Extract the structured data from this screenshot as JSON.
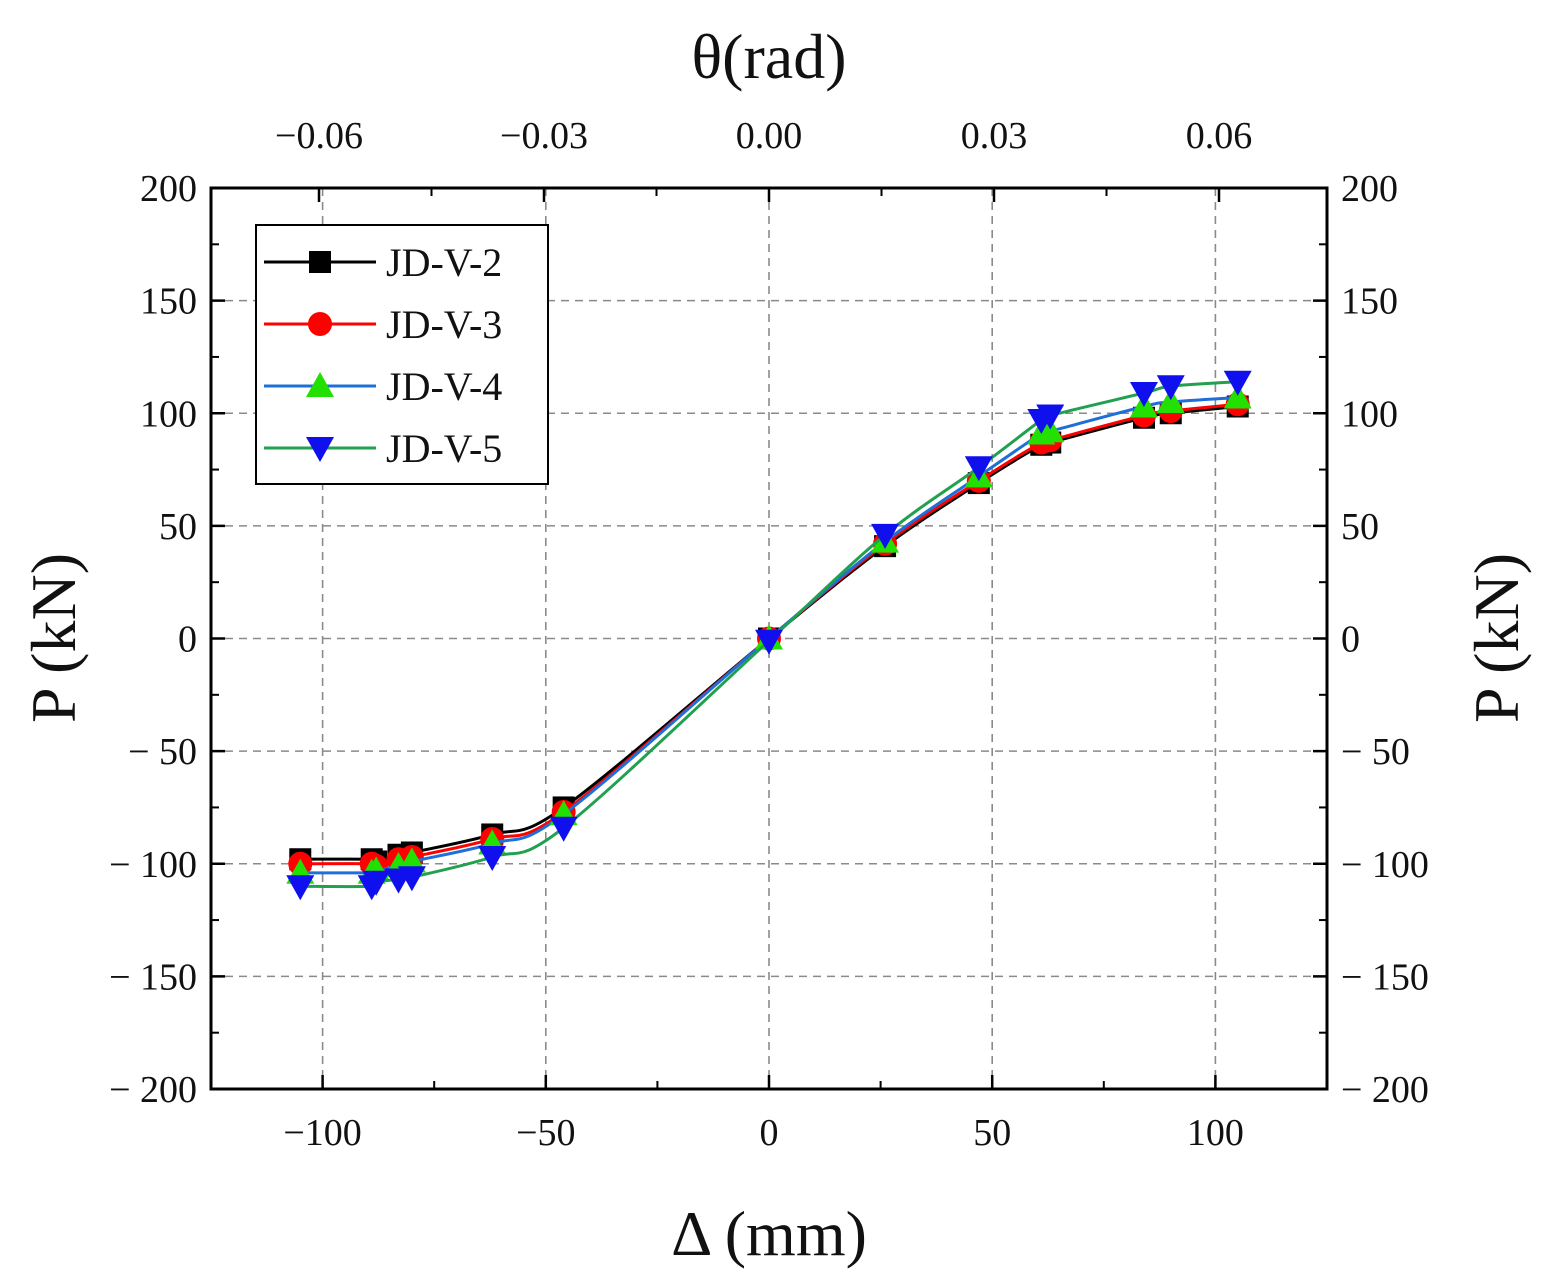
{
  "chart_data": {
    "type": "line",
    "title": "",
    "xlabel": "Δ (mm)",
    "ylabel": "P (kN)",
    "y2label": "P (kN)",
    "top_label": "θ(rad)",
    "xlim": [
      -125,
      125
    ],
    "ylim": [
      -200,
      200
    ],
    "top_xlim": [
      -0.0744,
      0.0744
    ],
    "grid": true,
    "legend_position": "top-left",
    "x_ticks": [
      {
        "v": -100,
        "label": "−100"
      },
      {
        "v": -50,
        "label": "−50"
      },
      {
        "v": 0,
        "label": "0"
      },
      {
        "v": 50,
        "label": "50"
      },
      {
        "v": 100,
        "label": "100"
      }
    ],
    "top_ticks": [
      {
        "v": -0.06,
        "label": "−0.06"
      },
      {
        "v": -0.03,
        "label": "−0.03"
      },
      {
        "v": 0.0,
        "label": "0.00"
      },
      {
        "v": 0.03,
        "label": "0.03"
      },
      {
        "v": 0.06,
        "label": "0.06"
      }
    ],
    "y_ticks_left": [
      {
        "v": 200,
        "label": "200"
      },
      {
        "v": 150,
        "label": "150"
      },
      {
        "v": 100,
        "label": "100"
      },
      {
        "v": 50,
        "label": "50"
      },
      {
        "v": 0,
        "label": "0"
      },
      {
        "v": -50,
        "label": "− 50"
      },
      {
        "v": -100,
        "label": "− 100"
      },
      {
        "v": -150,
        "label": "− 150"
      },
      {
        "v": -200,
        "label": "− 200"
      }
    ],
    "y_ticks_right": [
      {
        "v": 200,
        "label": "200"
      },
      {
        "v": 150,
        "label": "150"
      },
      {
        "v": 100,
        "label": "100"
      },
      {
        "v": 50,
        "label": "50"
      },
      {
        "v": 0,
        "label": "0"
      },
      {
        "v": -50,
        "label": "− 50"
      },
      {
        "v": -100,
        "label": "− 100"
      },
      {
        "v": -150,
        "label": "− 150"
      },
      {
        "v": -200,
        "label": "− 200"
      }
    ],
    "series": [
      {
        "name": "JD-V-2",
        "color": "#000000",
        "marker": "square",
        "points": [
          [
            -105,
            -98
          ],
          [
            -89,
            -98
          ],
          [
            -88,
            -99
          ],
          [
            -83,
            -96
          ],
          [
            -80,
            -95
          ],
          [
            -62,
            -87
          ],
          [
            -46,
            -75
          ],
          [
            0,
            0
          ],
          [
            26,
            41
          ],
          [
            47,
            69
          ],
          [
            61,
            86
          ],
          [
            63,
            87
          ],
          [
            84,
            98
          ],
          [
            90,
            100
          ],
          [
            105,
            103
          ]
        ]
      },
      {
        "name": "JD-V-3",
        "color": "#ff0000",
        "marker": "circle",
        "points": [
          [
            -105,
            -100
          ],
          [
            -89,
            -100
          ],
          [
            -88,
            -101
          ],
          [
            -83,
            -98
          ],
          [
            -80,
            -97
          ],
          [
            -62,
            -89
          ],
          [
            -46,
            -77
          ],
          [
            0,
            0
          ],
          [
            26,
            42
          ],
          [
            47,
            70
          ],
          [
            61,
            87
          ],
          [
            63,
            88
          ],
          [
            84,
            99
          ],
          [
            90,
            101
          ],
          [
            105,
            104
          ]
        ]
      },
      {
        "name": "JD-V-4",
        "color": "#1e6fd8",
        "marker": "triangle-up",
        "points": [
          [
            -105,
            -104
          ],
          [
            -89,
            -104
          ],
          [
            -88,
            -103
          ],
          [
            -83,
            -101
          ],
          [
            -80,
            -99
          ],
          [
            -62,
            -91
          ],
          [
            -46,
            -78
          ],
          [
            0,
            0
          ],
          [
            26,
            43
          ],
          [
            47,
            72
          ],
          [
            61,
            91
          ],
          [
            63,
            92
          ],
          [
            84,
            103
          ],
          [
            90,
            105
          ],
          [
            105,
            107
          ]
        ]
      },
      {
        "name": "JD-V-5",
        "color": "#21a050",
        "marker": "triangle-down",
        "points": [
          [
            -105,
            -110
          ],
          [
            -89,
            -110
          ],
          [
            -88,
            -108
          ],
          [
            -83,
            -107
          ],
          [
            -80,
            -106
          ],
          [
            -62,
            -97
          ],
          [
            -46,
            -84
          ],
          [
            0,
            -1
          ],
          [
            26,
            46
          ],
          [
            47,
            76
          ],
          [
            61,
            97
          ],
          [
            63,
            99
          ],
          [
            84,
            109
          ],
          [
            90,
            112
          ],
          [
            105,
            114
          ]
        ]
      }
    ]
  }
}
